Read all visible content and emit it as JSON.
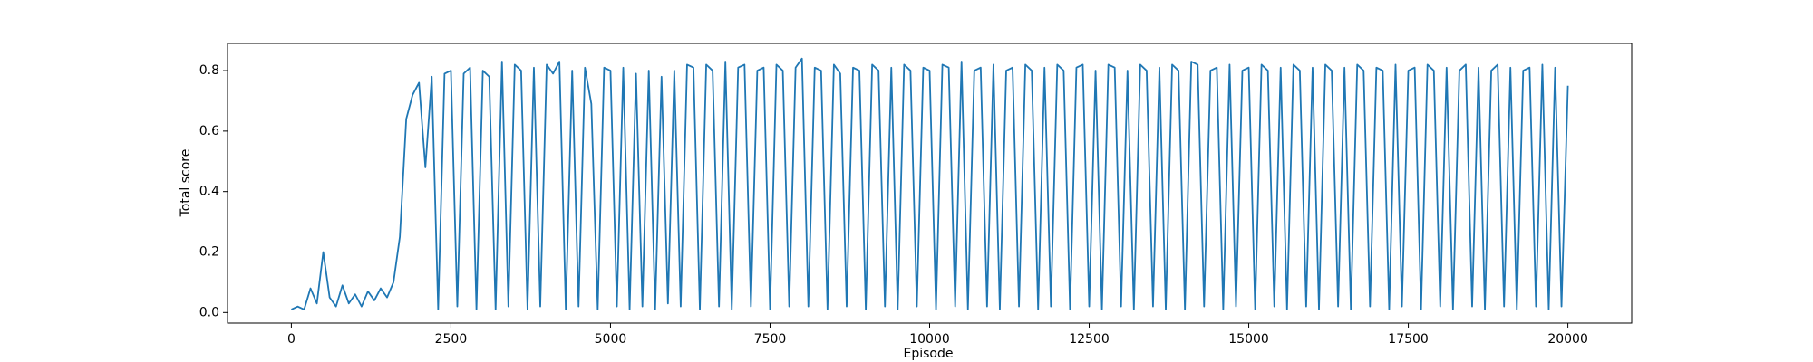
{
  "chart_data": {
    "type": "line",
    "xlabel": "Episode",
    "ylabel": "Total score",
    "xlim": [
      -1000,
      21000
    ],
    "ylim": [
      -0.035,
      0.89
    ],
    "xticks": [
      0,
      2500,
      5000,
      7500,
      10000,
      12500,
      15000,
      17500,
      20000
    ],
    "yticks": [
      {
        "value": 0,
        "label": "0.0"
      },
      0.2,
      0.4,
      0.6,
      0.8
    ],
    "grid": false,
    "series": [
      {
        "color": "#1f77b4",
        "x": [
          0,
          100,
          200,
          300,
          400,
          500,
          600,
          700,
          800,
          900,
          1000,
          1100,
          1200,
          1300,
          1400,
          1500,
          1600,
          1700,
          1800,
          1900,
          2000,
          2100,
          2200,
          2300,
          2400,
          2500,
          2600,
          2700,
          2800,
          2900,
          3000,
          3100,
          3200,
          3300,
          3400,
          3500,
          3600,
          3700,
          3800,
          3900,
          4000,
          4100,
          4200,
          4300,
          4400,
          4500,
          4600,
          4700,
          4800,
          4900,
          5000,
          5100,
          5200,
          5300,
          5400,
          5500,
          5600,
          5700,
          5800,
          5900,
          6000,
          6100,
          6200,
          6300,
          6400,
          6500,
          6600,
          6700,
          6800,
          6900,
          7000,
          7100,
          7200,
          7300,
          7400,
          7500,
          7600,
          7700,
          7800,
          7900,
          8000,
          8100,
          8200,
          8300,
          8400,
          8500,
          8600,
          8700,
          8800,
          8900,
          9000,
          9100,
          9200,
          9300,
          9400,
          9500,
          9600,
          9700,
          9800,
          9900,
          10000,
          10100,
          10200,
          10300,
          10400,
          10500,
          10600,
          10700,
          10800,
          10900,
          11000,
          11100,
          11200,
          11300,
          11400,
          11500,
          11600,
          11700,
          11800,
          11900,
          12000,
          12100,
          12200,
          12300,
          12400,
          12500,
          12600,
          12700,
          12800,
          12900,
          13000,
          13100,
          13200,
          13300,
          13400,
          13500,
          13600,
          13700,
          13800,
          13900,
          14000,
          14100,
          14200,
          14300,
          14400,
          14500,
          14600,
          14700,
          14800,
          14900,
          15000,
          15100,
          15200,
          15300,
          15400,
          15500,
          15600,
          15700,
          15800,
          15900,
          16000,
          16100,
          16200,
          16300,
          16400,
          16500,
          16600,
          16700,
          16800,
          16900,
          17000,
          17100,
          17200,
          17300,
          17400,
          17500,
          17600,
          17700,
          17800,
          17900,
          18000,
          18100,
          18200,
          18300,
          18400,
          18500,
          18600,
          18700,
          18800,
          18900,
          19000,
          19100,
          19200,
          19300,
          19400,
          19500,
          19600,
          19700,
          19800,
          19900,
          20000
        ],
        "values": [
          0.01,
          0.02,
          0.01,
          0.08,
          0.03,
          0.2,
          0.05,
          0.02,
          0.09,
          0.03,
          0.06,
          0.02,
          0.07,
          0.04,
          0.08,
          0.05,
          0.1,
          0.25,
          0.64,
          0.72,
          0.76,
          0.48,
          0.78,
          0.01,
          0.79,
          0.8,
          0.02,
          0.79,
          0.81,
          0.01,
          0.8,
          0.78,
          0.01,
          0.83,
          0.02,
          0.82,
          0.8,
          0.01,
          0.81,
          0.02,
          0.82,
          0.79,
          0.83,
          0.01,
          0.8,
          0.02,
          0.81,
          0.69,
          0.01,
          0.81,
          0.8,
          0.02,
          0.81,
          0.01,
          0.79,
          0.02,
          0.8,
          0.01,
          0.78,
          0.03,
          0.8,
          0.02,
          0.82,
          0.81,
          0.01,
          0.82,
          0.8,
          0.02,
          0.83,
          0.01,
          0.81,
          0.82,
          0.02,
          0.8,
          0.81,
          0.01,
          0.82,
          0.8,
          0.02,
          0.81,
          0.84,
          0.02,
          0.81,
          0.8,
          0.01,
          0.82,
          0.79,
          0.02,
          0.81,
          0.8,
          0.01,
          0.82,
          0.8,
          0.02,
          0.81,
          0.01,
          0.82,
          0.8,
          0.02,
          0.81,
          0.8,
          0.01,
          0.82,
          0.81,
          0.02,
          0.83,
          0.01,
          0.8,
          0.81,
          0.02,
          0.82,
          0.01,
          0.8,
          0.81,
          0.02,
          0.82,
          0.8,
          0.01,
          0.81,
          0.02,
          0.82,
          0.8,
          0.01,
          0.81,
          0.82,
          0.02,
          0.8,
          0.01,
          0.82,
          0.81,
          0.02,
          0.8,
          0.01,
          0.82,
          0.8,
          0.02,
          0.81,
          0.01,
          0.82,
          0.8,
          0.01,
          0.83,
          0.82,
          0.02,
          0.8,
          0.81,
          0.01,
          0.82,
          0.02,
          0.8,
          0.81,
          0.01,
          0.82,
          0.8,
          0.02,
          0.81,
          0.01,
          0.82,
          0.8,
          0.02,
          0.81,
          0.01,
          0.82,
          0.8,
          0.02,
          0.81,
          0.01,
          0.82,
          0.8,
          0.02,
          0.81,
          0.8,
          0.01,
          0.82,
          0.02,
          0.8,
          0.81,
          0.01,
          0.82,
          0.8,
          0.02,
          0.81,
          0.01,
          0.8,
          0.82,
          0.02,
          0.81,
          0.01,
          0.8,
          0.82,
          0.02,
          0.81,
          0.01,
          0.8,
          0.81,
          0.02,
          0.82,
          0.01,
          0.81,
          0.02,
          0.75
        ]
      }
    ]
  }
}
